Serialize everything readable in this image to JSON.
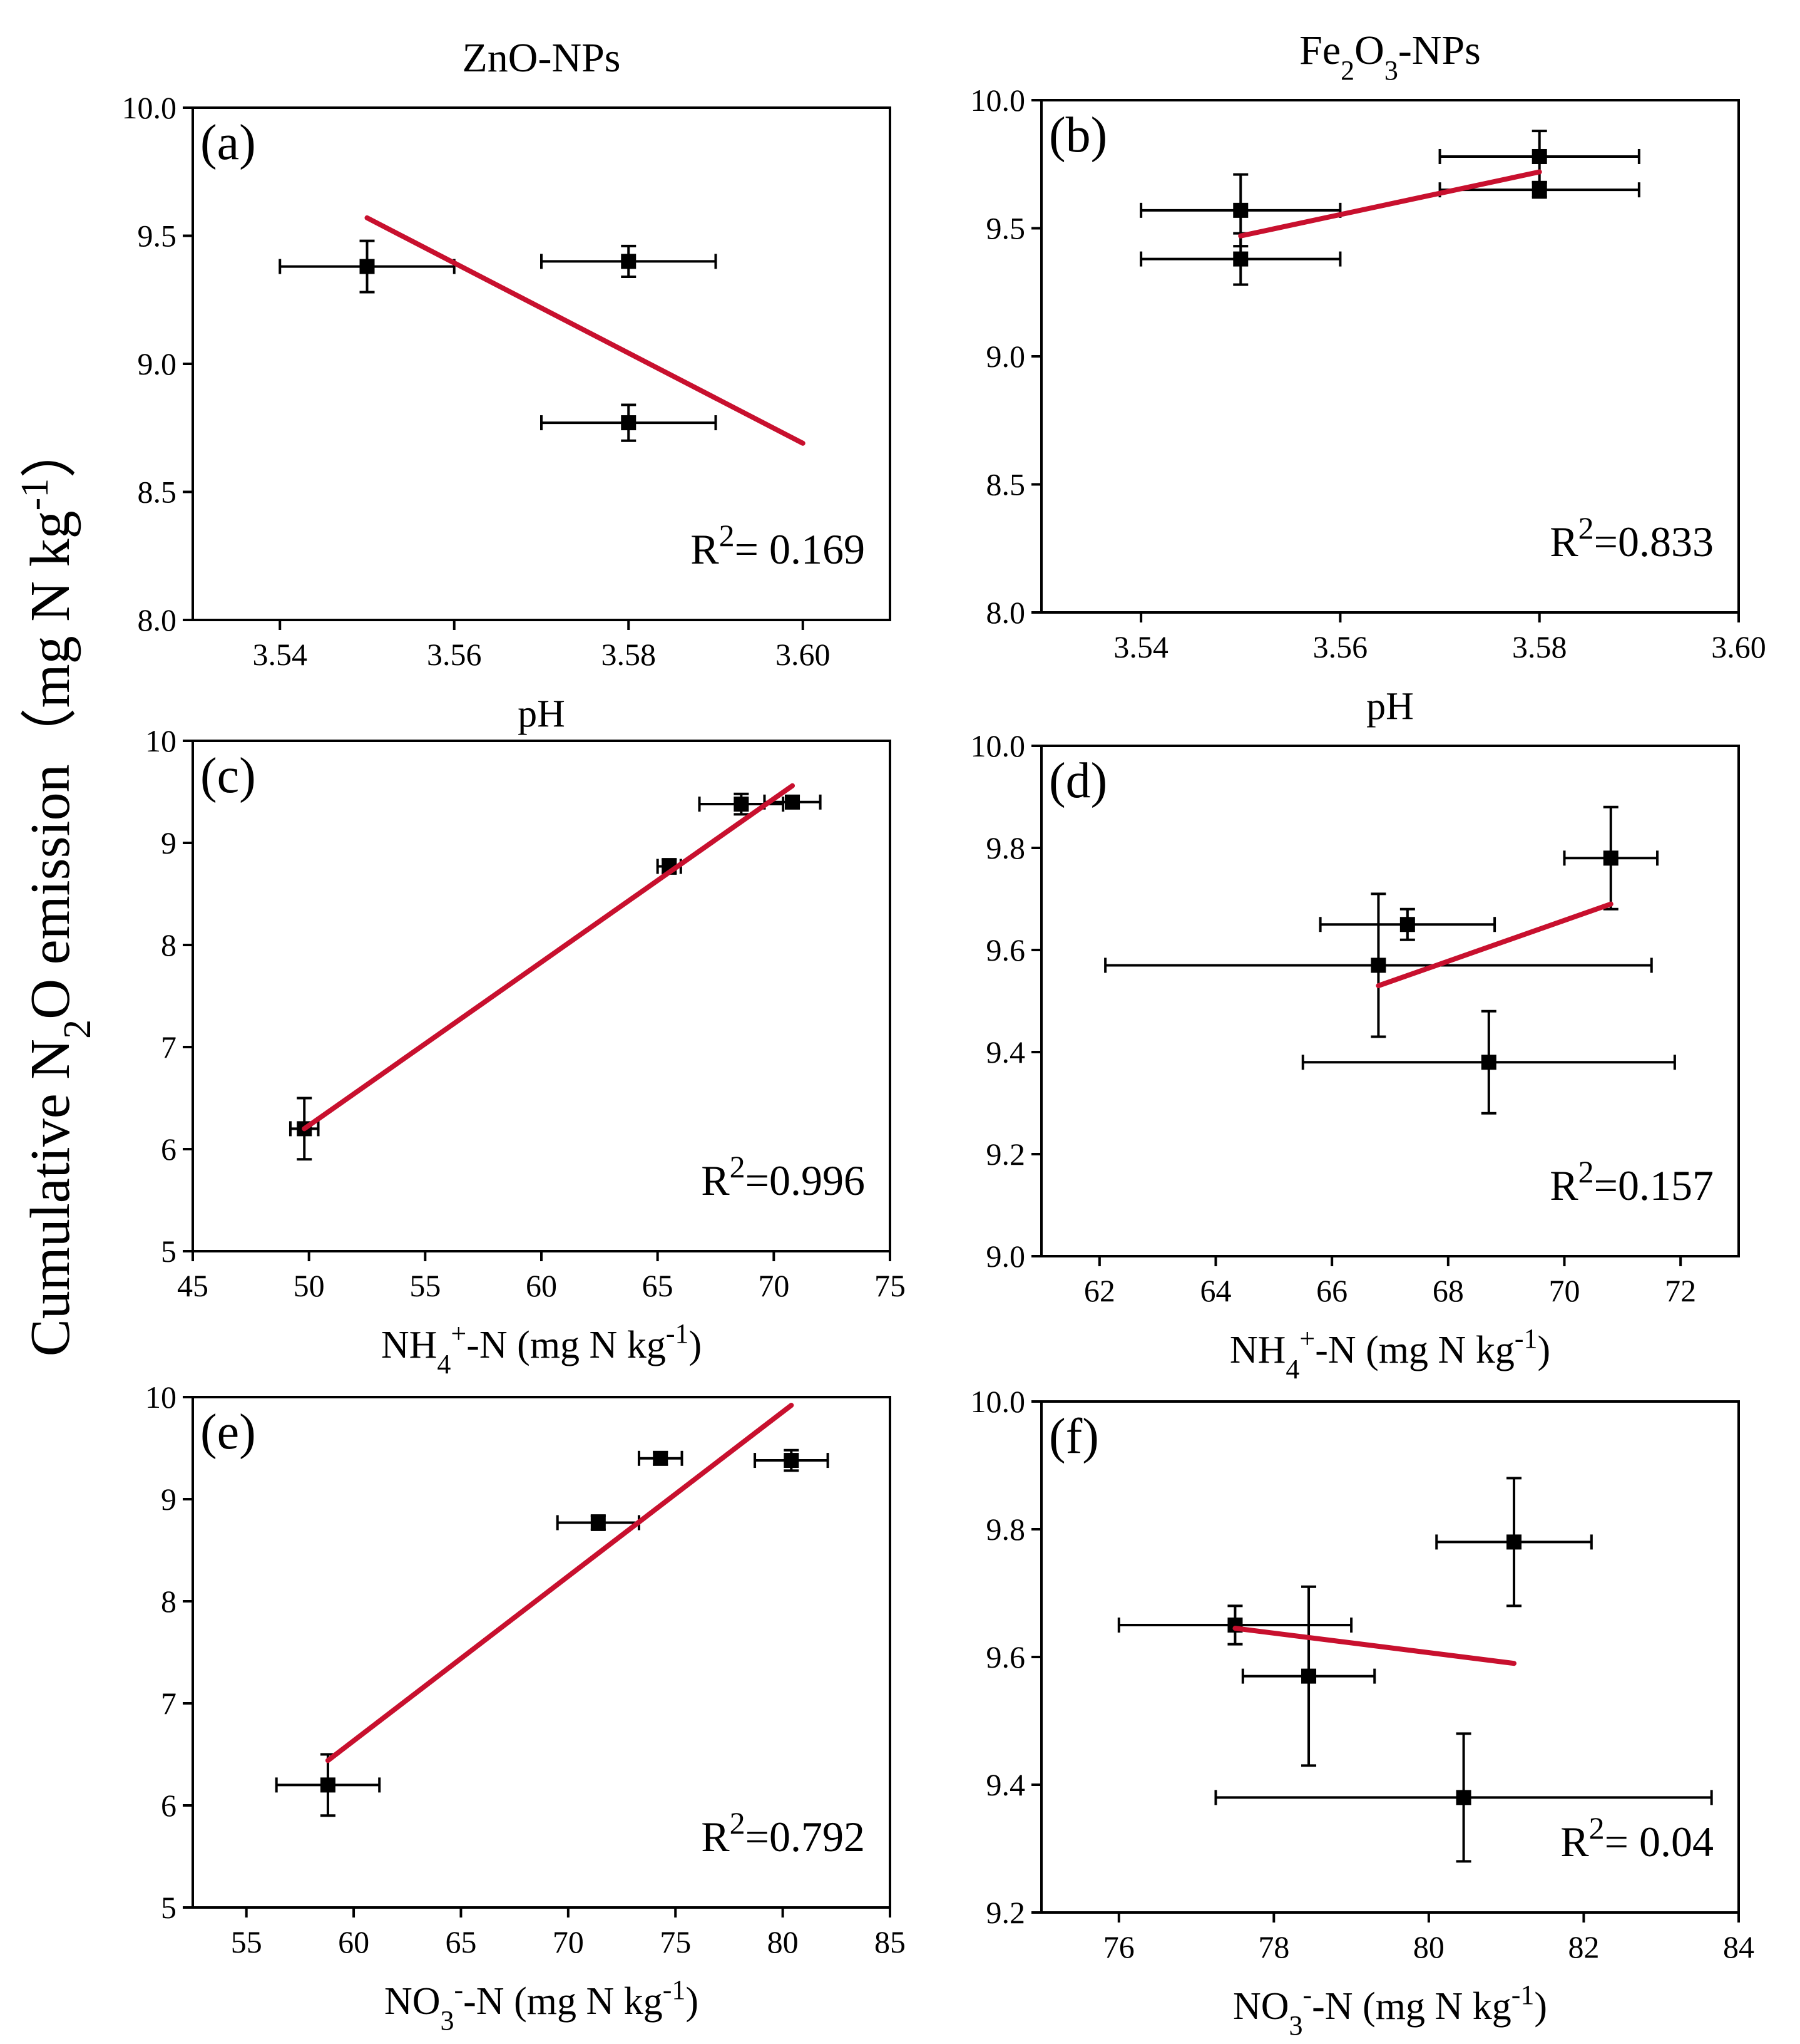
{
  "figure": {
    "y_axis_label": {
      "prefix": "Cumulative N",
      "sub": "2",
      "mid": "O  emission（mg N kg",
      "sup": "-1",
      "suffix": "）"
    }
  },
  "colors": {
    "fit_line": "#c8102e",
    "marker": "#000000",
    "axes": "#000000"
  },
  "chart_data": [
    {
      "panel": "(a)",
      "type": "scatter",
      "title": {
        "main": "ZnO-NPs"
      },
      "xlabel": {
        "main": "pH"
      },
      "xlim": [
        3.53,
        3.61
      ],
      "ylim": [
        8.0,
        10.0
      ],
      "xticks": [
        3.54,
        3.56,
        3.58,
        3.6
      ],
      "xtick_labels": [
        "3.54",
        "3.56",
        "3.58",
        "3.60"
      ],
      "yticks": [
        8.0,
        8.5,
        9.0,
        9.5,
        10.0
      ],
      "ytick_labels": [
        "8.0",
        "8.5",
        "9.0",
        "9.5",
        "10.0"
      ],
      "points": [
        {
          "x": 3.55,
          "y": 9.38,
          "xerr": 0.01,
          "yerr": 0.1
        },
        {
          "x": 3.58,
          "y": 9.4,
          "xerr": 0.01,
          "yerr": 0.06
        },
        {
          "x": 3.58,
          "y": 8.77,
          "xerr": 0.01,
          "yerr": 0.07
        }
      ],
      "fit_line": {
        "x": [
          3.55,
          3.6
        ],
        "y": [
          9.57,
          8.69
        ]
      },
      "r2_label": "= 0.169"
    },
    {
      "panel": "(b)",
      "type": "scatter",
      "title": {
        "main": "Fe",
        "sub": "2",
        "mid": "O",
        "sub2": "3",
        "suffix": "-NPs"
      },
      "xlabel": {
        "main": "pH"
      },
      "xlim": [
        3.53,
        3.6
      ],
      "ylim": [
        8.0,
        10.0
      ],
      "xticks": [
        3.54,
        3.56,
        3.58,
        3.6
      ],
      "xtick_labels": [
        "3.54",
        "3.56",
        "3.58",
        "3.60"
      ],
      "yticks": [
        8.0,
        8.5,
        9.0,
        9.5,
        10.0
      ],
      "ytick_labels": [
        "8.0",
        "8.5",
        "9.0",
        "9.5",
        "10.0"
      ],
      "points": [
        {
          "x": 3.55,
          "y": 9.57,
          "xerr": 0.01,
          "yerr": 0.14
        },
        {
          "x": 3.55,
          "y": 9.38,
          "xerr": 0.01,
          "yerr": 0.1
        },
        {
          "x": 3.58,
          "y": 9.78,
          "xerr": 0.01,
          "yerr": 0.1
        },
        {
          "x": 3.58,
          "y": 9.65,
          "xerr": 0.01,
          "yerr": 0.03
        }
      ],
      "fit_line": {
        "x": [
          3.55,
          3.58
        ],
        "y": [
          9.47,
          9.72
        ]
      },
      "r2_label": "=0.833"
    },
    {
      "panel": "(c)",
      "type": "scatter",
      "xlabel": {
        "main": "NH",
        "sub": "4",
        "sup": "+",
        "suffix": "-N (mg N kg",
        "sup2": "-1",
        "end": ")"
      },
      "xlim": [
        45,
        75
      ],
      "ylim": [
        5,
        10
      ],
      "xticks": [
        45,
        50,
        55,
        60,
        65,
        70,
        75
      ],
      "xtick_labels": [
        "45",
        "50",
        "55",
        "60",
        "65",
        "70",
        "75"
      ],
      "yticks": [
        5,
        6,
        7,
        8,
        9,
        10
      ],
      "ytick_labels": [
        "5",
        "6",
        "7",
        "8",
        "9",
        "10"
      ],
      "points": [
        {
          "x": 49.8,
          "y": 6.2,
          "xerr": 0.6,
          "yerr": 0.3
        },
        {
          "x": 65.5,
          "y": 8.77,
          "xerr": 0.5,
          "yerr": 0.07
        },
        {
          "x": 68.6,
          "y": 9.38,
          "xerr": 1.8,
          "yerr": 0.1
        },
        {
          "x": 70.8,
          "y": 9.4,
          "xerr": 1.2,
          "yerr": 0.06
        }
      ],
      "fit_line": {
        "x": [
          49.8,
          70.8
        ],
        "y": [
          6.2,
          9.56
        ]
      },
      "r2_label": "=0.996"
    },
    {
      "panel": "(d)",
      "type": "scatter",
      "xlabel": {
        "main": "NH",
        "sub": "4",
        "sup": "+",
        "suffix": "-N (mg N kg",
        "sup2": "-1",
        "end": ")"
      },
      "xlim": [
        61,
        73
      ],
      "ylim": [
        9.0,
        10.0
      ],
      "xticks": [
        62,
        64,
        66,
        68,
        70,
        72
      ],
      "xtick_labels": [
        "62",
        "64",
        "66",
        "68",
        "70",
        "72"
      ],
      "yticks": [
        9.0,
        9.2,
        9.4,
        9.6,
        9.8,
        10.0
      ],
      "ytick_labels": [
        "9.0",
        "9.2",
        "9.4",
        "9.6",
        "9.8",
        "10.0"
      ],
      "points": [
        {
          "x": 66.8,
          "y": 9.57,
          "xerr": 4.7,
          "yerr": 0.14
        },
        {
          "x": 67.3,
          "y": 9.65,
          "xerr": 1.5,
          "yerr": 0.03
        },
        {
          "x": 68.7,
          "y": 9.38,
          "xerr": 3.2,
          "yerr": 0.1
        },
        {
          "x": 70.8,
          "y": 9.78,
          "xerr": 0.8,
          "yerr": 0.1
        }
      ],
      "fit_line": {
        "x": [
          66.8,
          70.8
        ],
        "y": [
          9.53,
          9.69
        ]
      },
      "r2_label": "=0.157"
    },
    {
      "panel": "(e)",
      "type": "scatter",
      "xlabel": {
        "main": "NO",
        "sub": "3",
        "sup": "-",
        "suffix": "-N (mg N kg",
        "sup2": "-1",
        "end": ")"
      },
      "xlim": [
        52.5,
        85
      ],
      "ylim": [
        5,
        10
      ],
      "xticks": [
        55,
        60,
        65,
        70,
        75,
        80,
        85
      ],
      "xtick_labels": [
        "55",
        "60",
        "65",
        "70",
        "75",
        "80",
        "85"
      ],
      "yticks": [
        5,
        6,
        7,
        8,
        9,
        10
      ],
      "ytick_labels": [
        "5",
        "6",
        "7",
        "8",
        "9",
        "10"
      ],
      "points": [
        {
          "x": 58.8,
          "y": 6.2,
          "xerr": 2.4,
          "yerr": 0.3
        },
        {
          "x": 71.4,
          "y": 8.77,
          "xerr": 1.9,
          "yerr": 0.07
        },
        {
          "x": 74.3,
          "y": 9.4,
          "xerr": 1.0,
          "yerr": 0.06
        },
        {
          "x": 80.4,
          "y": 9.38,
          "xerr": 1.7,
          "yerr": 0.1
        }
      ],
      "fit_line": {
        "x": [
          58.8,
          80.4
        ],
        "y": [
          6.44,
          9.92
        ]
      },
      "r2_label": "=0.792"
    },
    {
      "panel": "(f)",
      "type": "scatter",
      "xlabel": {
        "main": "NO",
        "sub": "3",
        "sup": "-",
        "suffix": "-N (mg N kg",
        "sup2": "-1",
        "end": ")"
      },
      "xlim": [
        75,
        84
      ],
      "ylim": [
        9.2,
        10.0
      ],
      "xticks": [
        76,
        78,
        80,
        82,
        84
      ],
      "xtick_labels": [
        "76",
        "78",
        "80",
        "82",
        "84"
      ],
      "yticks": [
        9.2,
        9.4,
        9.6,
        9.8,
        10.0
      ],
      "ytick_labels": [
        "9.2",
        "9.4",
        "9.6",
        "9.8",
        "10.0"
      ],
      "points": [
        {
          "x": 77.5,
          "y": 9.65,
          "xerr": 1.5,
          "yerr": 0.03
        },
        {
          "x": 78.45,
          "y": 9.57,
          "xerr": 0.85,
          "yerr": 0.14
        },
        {
          "x": 81.1,
          "y": 9.78,
          "xerr": 1.0,
          "yerr": 0.1
        },
        {
          "x": 80.45,
          "y": 9.38,
          "xerr": 3.2,
          "yerr": 0.1
        }
      ],
      "fit_line": {
        "x": [
          77.5,
          81.1
        ],
        "y": [
          9.645,
          9.59
        ]
      },
      "r2_label": "= 0.04"
    }
  ]
}
